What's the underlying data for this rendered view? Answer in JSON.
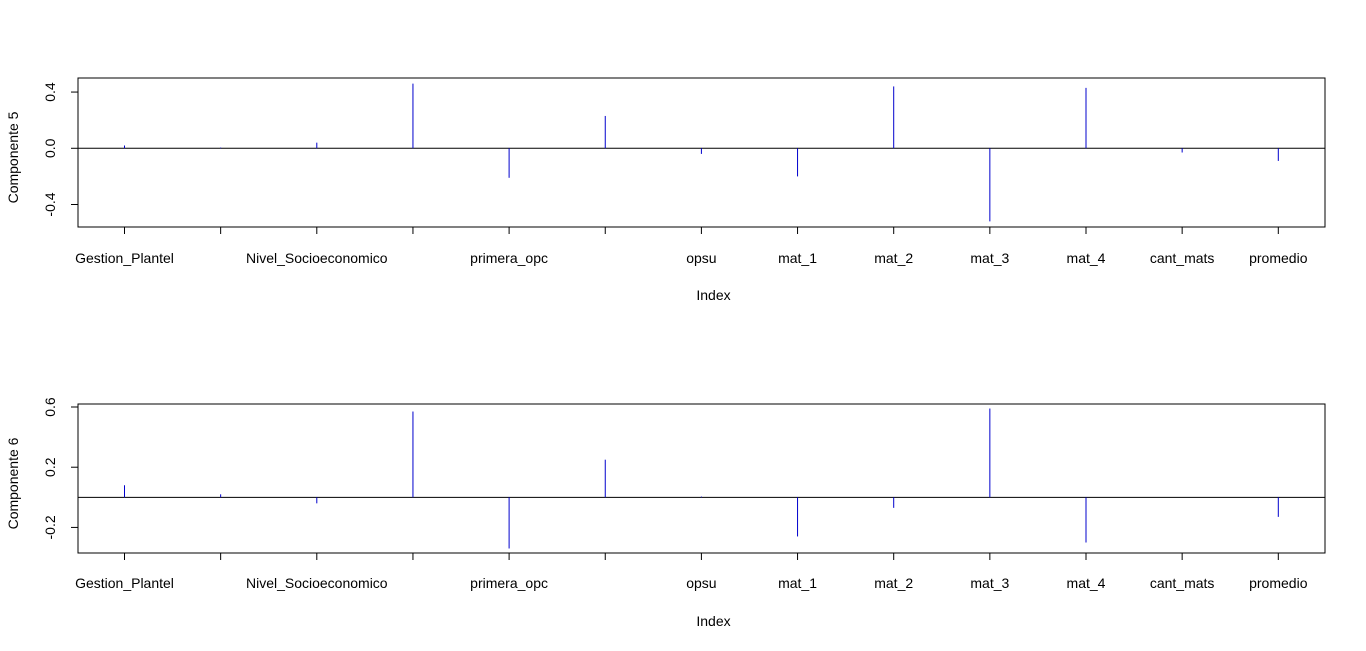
{
  "chart_data": [
    {
      "type": "bar",
      "xlabel": "Index",
      "ylabel": "Componente 5",
      "ylim": [
        -0.56,
        0.5
      ],
      "yticks": [
        "0.4",
        "0.0",
        "-0.4"
      ],
      "ytick_values": [
        0.4,
        0.0,
        -0.4
      ],
      "xtick_labels": [
        "Gestion_Plantel",
        "",
        "Nivel_Socioeconomico",
        "",
        "primera_opc",
        "",
        "opsu",
        "mat_1",
        "mat_2",
        "mat_3",
        "mat_4",
        "cant_mats",
        "promedio"
      ],
      "values": [
        0.02,
        0.005,
        0.04,
        0.46,
        -0.21,
        0.23,
        -0.04,
        -0.2,
        0.44,
        -0.52,
        0.43,
        -0.03,
        -0.09
      ],
      "bar_color": "#0000cd"
    },
    {
      "type": "bar",
      "xlabel": "Index",
      "ylabel": "Componente 6",
      "ylim": [
        -0.37,
        0.62
      ],
      "yticks": [
        "0.6",
        "0.2",
        "-0.2"
      ],
      "ytick_values": [
        0.6,
        0.2,
        -0.2
      ],
      "xtick_labels": [
        "Gestion_Plantel",
        "",
        "Nivel_Socioeconomico",
        "",
        "primera_opc",
        "",
        "opsu",
        "mat_1",
        "mat_2",
        "mat_3",
        "mat_4",
        "cant_mats",
        "promedio"
      ],
      "values": [
        0.08,
        0.02,
        -0.04,
        0.57,
        -0.34,
        0.25,
        0.005,
        -0.26,
        -0.07,
        0.59,
        -0.3,
        0.0,
        -0.13
      ],
      "bar_color": "#0000cd"
    }
  ]
}
